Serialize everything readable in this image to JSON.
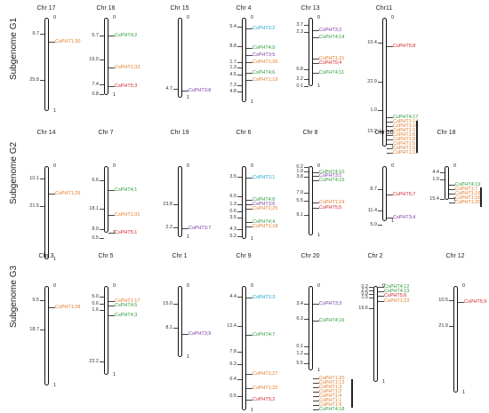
{
  "colors": {
    "PHT1": "#e07b2a",
    "PHT2": "#1aa3d4",
    "PHT3": "#7a3aa3",
    "PHT4": "#2f9a3a",
    "PHT5": "#d0262e"
  },
  "rows": [
    {
      "label": "Subgenome G1",
      "chromosomes": [
        {
          "name": "Chr 17",
          "positions": [
            "9.7",
            "25.8"
          ],
          "genes": [
            {
              "name": "CsPHT1;30",
              "fam": "PHT1"
            }
          ]
        },
        {
          "name": "Chr 16",
          "positions": [
            "5.7",
            "15.0",
            "7.4",
            "0.8"
          ],
          "genes": [
            {
              "name": "CsPHT4;2",
              "fam": "PHT4"
            },
            {
              "name": "CsPHT1;33",
              "fam": "PHT1"
            },
            {
              "name": "CsPHT5;3",
              "fam": "PHT5"
            }
          ]
        },
        {
          "name": "Chr 15",
          "positions": [
            "4.7"
          ],
          "genes": [
            {
              "name": "CsPHT3;8",
              "fam": "PHT3"
            }
          ]
        },
        {
          "name": "Chr 4",
          "positions": [
            "5.4",
            "8.8",
            "1.7",
            "1.3",
            "4.5",
            "7.3",
            "4.8"
          ],
          "genes": [
            {
              "name": "CsPHT2;2",
              "fam": "PHT2"
            },
            {
              "name": "CsPHT4;9",
              "fam": "PHT4"
            },
            {
              "name": "CsPHT3;5",
              "fam": "PHT3"
            },
            {
              "name": "CsPHT1;26",
              "fam": "PHT1"
            },
            {
              "name": "CsPHT4;6",
              "fam": "PHT4"
            },
            {
              "name": "CsPHT1;19",
              "fam": "PHT1"
            }
          ]
        },
        {
          "name": "Chr 13",
          "positions": [
            "3.7",
            "2.3",
            "6.8",
            "2.2",
            "0.1"
          ],
          "genes": [
            {
              "name": "CsPHT3;2",
              "fam": "PHT3"
            },
            {
              "name": "CsPHT4;14",
              "fam": "PHT4"
            },
            {
              "name": "CsPHT1;21",
              "fam": "PHT1"
            },
            {
              "name": "CsPHT5;4",
              "fam": "PHT5"
            },
            {
              "name": "CsPHT4;11",
              "fam": "PHT4"
            }
          ]
        },
        {
          "name": "Chr11",
          "positions": [
            "10.4",
            "22.9",
            "1.0",
            "15.2"
          ],
          "genes": [
            {
              "name": "CsPHT5;8",
              "fam": "PHT5"
            },
            {
              "name": "CsPHT4;17",
              "fam": "PHT4"
            },
            {
              "name": "CsPHT1;14",
              "fam": "PHT1"
            },
            {
              "name": "CsPHT1;10",
              "fam": "PHT1"
            },
            {
              "name": "CsPHT1;11",
              "fam": "PHT1"
            },
            {
              "name": "CsPHT1;6",
              "fam": "PHT1"
            },
            {
              "name": "CsPHT1;8",
              "fam": "PHT1"
            },
            {
              "name": "CsPHT1;5",
              "fam": "PHT1"
            },
            {
              "name": "CsPHT1;9",
              "fam": "PHT1"
            },
            {
              "name": "CsPHT1;13",
              "fam": "PHT1"
            }
          ]
        }
      ]
    },
    {
      "label": "Subgenome G2",
      "chromosomes": [
        {
          "name": "Chr 14",
          "positions": [
            "10.1",
            "21.5"
          ],
          "genes": [
            {
              "name": "CsPHT1;29",
              "fam": "PHT1"
            }
          ]
        },
        {
          "name": "Chr 7",
          "positions": [
            "6.6",
            "18.1",
            "8.0",
            "0.5"
          ],
          "genes": [
            {
              "name": "CsPHT4;1",
              "fam": "PHT4"
            },
            {
              "name": "CsPHT1;31",
              "fam": "PHT1"
            },
            {
              "name": "CsPHT5;1",
              "fam": "PHT5"
            }
          ]
        },
        {
          "name": "Chr 19",
          "positions": [
            "23.8",
            "2.2"
          ],
          "genes": [
            {
              "name": "CsPHT3;7",
              "fam": "PHT3"
            }
          ]
        },
        {
          "name": "Chr 6",
          "positions": [
            "3.5",
            "6.0",
            "1.3",
            "0.6",
            "3.5",
            "4.3",
            "5.2"
          ],
          "genes": [
            {
              "name": "CsPHT2;1",
              "fam": "PHT2"
            },
            {
              "name": "CsPHT4;8",
              "fam": "PHT4"
            },
            {
              "name": "CsPHT3;6",
              "fam": "PHT3"
            },
            {
              "name": "CsPHT1;25",
              "fam": "PHT1"
            },
            {
              "name": "CsPHT4;4",
              "fam": "PHT4"
            },
            {
              "name": "CsPHT1;18",
              "fam": "PHT1"
            }
          ]
        },
        {
          "name": "Chr 8",
          "positions": [
            "0.2",
            "1.9",
            "3.8",
            "7.9",
            "5.5",
            "9.1"
          ],
          "genes": [
            {
              "name": "CsPHT4;10",
              "fam": "PHT4"
            },
            {
              "name": "CsPHT3;1",
              "fam": "PHT3"
            },
            {
              "name": "CsPHT4;15",
              "fam": "PHT4"
            },
            {
              "name": "CsPHT1;24",
              "fam": "PHT1"
            },
            {
              "name": "CsPHT5;5",
              "fam": "PHT5"
            }
          ]
        },
        {
          "name": "Chr 10",
          "positions": [
            "8.7",
            "11.4",
            "5.0"
          ],
          "genes": [
            {
              "name": "CsPHT5;7",
              "fam": "PHT5"
            },
            {
              "name": "CsPHT3;4",
              "fam": "PHT3"
            }
          ]
        },
        {
          "name": "Chr 18",
          "positions": [
            "4.4",
            "1.0",
            "15.4"
          ],
          "genes": [
            {
              "name": "CsPHT4;19",
              "fam": "PHT4"
            },
            {
              "name": "CsPHT1;7",
              "fam": "PHT1"
            },
            {
              "name": "CsPHT1;16",
              "fam": "PHT1"
            },
            {
              "name": "CsPHT1;15",
              "fam": "PHT1"
            },
            {
              "name": "CsPHT1;20",
              "fam": "PHT1"
            }
          ]
        }
      ]
    },
    {
      "label": "Subgenome G3",
      "chromosomes": [
        {
          "name": "Chr 3",
          "positions": [
            "9.5",
            "18.7"
          ],
          "genes": [
            {
              "name": "CsPHT1;28",
              "fam": "PHT1"
            }
          ]
        },
        {
          "name": "Chr 5",
          "positions": [
            "5.0",
            "0.6",
            "1.6",
            "22.2"
          ],
          "genes": [
            {
              "name": "CsPHT1;17",
              "fam": "PHT1"
            },
            {
              "name": "CsPHT4;5",
              "fam": "PHT4"
            },
            {
              "name": "CsPHT4;3",
              "fam": "PHT4"
            }
          ]
        },
        {
          "name": "Chr 1",
          "positions": [
            "15.0",
            "8.1"
          ],
          "genes": [
            {
              "name": "CsPHT3;9",
              "fam": "PHT3"
            }
          ]
        },
        {
          "name": "Chr 9",
          "positions": [
            "4.4",
            "12.4",
            "7.8",
            "6.3",
            "6.4",
            "0.5"
          ],
          "genes": [
            {
              "name": "CsPHT2;3",
              "fam": "PHT2"
            },
            {
              "name": "CsPHT4;7",
              "fam": "PHT4"
            },
            {
              "name": "CsPHT1;27",
              "fam": "PHT1"
            },
            {
              "name": "CsPHT1;32",
              "fam": "PHT1"
            },
            {
              "name": "CsPHT5;2",
              "fam": "PHT5"
            }
          ]
        },
        {
          "name": "Chr 20",
          "positions": [
            "3.4",
            "6.3",
            "0.1",
            "1.2",
            "5.5"
          ],
          "genes": [
            {
              "name": "CsPHT3;3",
              "fam": "PHT3"
            },
            {
              "name": "CsPHT4;16",
              "fam": "PHT4"
            },
            {
              "name": "CsPHT1;20",
              "fam": "PHT1"
            },
            {
              "name": "CsPHT1;12",
              "fam": "PHT1"
            },
            {
              "name": "CsPHT1;3",
              "fam": "PHT1"
            },
            {
              "name": "CsPHT1;2",
              "fam": "PHT1"
            },
            {
              "name": "CsPHT1;4",
              "fam": "PHT1"
            },
            {
              "name": "CsPHT1;1",
              "fam": "PHT1"
            },
            {
              "name": "CsPHT1;9",
              "fam": "PHT1"
            },
            {
              "name": "CsPHT4;18",
              "fam": "PHT4"
            }
          ]
        },
        {
          "name": "Chr 2",
          "positions": [
            "0.2",
            "2.2",
            "0.9",
            "1.5",
            "19.6"
          ],
          "genes": [
            {
              "name": "CsPHT4;12",
              "fam": "PHT4"
            },
            {
              "name": "CsPHT4;13",
              "fam": "PHT4"
            },
            {
              "name": "CsPHT5;6",
              "fam": "PHT5"
            },
            {
              "name": "CsPHT1;23",
              "fam": "PHT1"
            }
          ]
        },
        {
          "name": "Chr 12",
          "positions": [
            "10.5",
            "21.9"
          ],
          "genes": [
            {
              "name": "CsPHT5;9",
              "fam": "PHT5"
            }
          ]
        }
      ]
    }
  ]
}
